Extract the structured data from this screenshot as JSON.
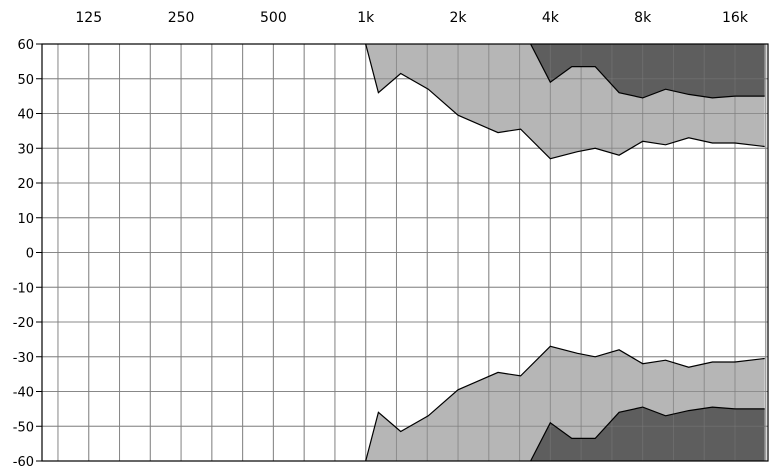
{
  "chart_data": {
    "type": "area",
    "x_scale": "log2",
    "x_ticks": [
      {
        "value": 125,
        "label": "125"
      },
      {
        "value": 250,
        "label": "250"
      },
      {
        "value": 500,
        "label": "500"
      },
      {
        "value": 1000,
        "label": "1k"
      },
      {
        "value": 2000,
        "label": "2k"
      },
      {
        "value": 4000,
        "label": "4k"
      },
      {
        "value": 8000,
        "label": "8k"
      },
      {
        "value": 16000,
        "label": "16k"
      }
    ],
    "x_range": [
      88,
      20500
    ],
    "y_ticks": [
      60,
      50,
      40,
      30,
      20,
      10,
      0,
      -10,
      -20,
      -30,
      -40,
      -50,
      -60
    ],
    "y_range": [
      -60,
      60
    ],
    "grid": true,
    "colors": {
      "background": "#ffffff",
      "grid": "#9a9a9a",
      "light_band": "#a9a9a9",
      "dark_band": "#4f4f4f",
      "outline": "#000000"
    },
    "series": [
      {
        "band": "light",
        "x": [
          1000,
          1100,
          1300,
          1600,
          2000,
          2700,
          3200,
          4000,
          4900,
          5600,
          6700,
          8000,
          9500,
          11300,
          13500,
          16000,
          20000
        ],
        "y": [
          60,
          46,
          51.5,
          47,
          39.5,
          34.5,
          35.5,
          27,
          29,
          30,
          28,
          32,
          31,
          33,
          31.5,
          31.5,
          30.5
        ]
      },
      {
        "band": "dark",
        "x": [
          3450,
          4000,
          4700,
          5600,
          6700,
          8000,
          9500,
          11300,
          13500,
          16000,
          20000
        ],
        "y": [
          60,
          49,
          53.5,
          53.5,
          46,
          44.5,
          47,
          45.5,
          44.5,
          45,
          45
        ]
      }
    ]
  }
}
